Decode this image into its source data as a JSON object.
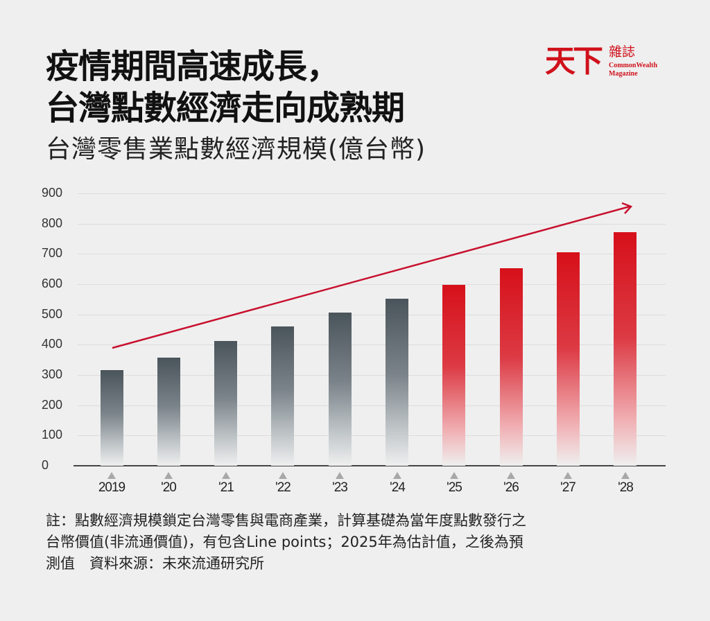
{
  "header": {
    "title_line1": "疫情期間高速成長，",
    "title_line2": "台灣點數經濟走向成熟期",
    "subtitle": "台灣零售業點數經濟規模(億台幣)"
  },
  "logo": {
    "main": "天下",
    "zh": "雜誌",
    "en_line1": "CommonWealth",
    "en_line2": "Magazine",
    "color": "#d0111b"
  },
  "chart_data": {
    "type": "bar",
    "title": "疫情期間高速成長，台灣點數經濟走向成熟期",
    "subtitle": "台灣零售業點數經濟規模(億台幣)",
    "xlabel": "",
    "ylabel": "億台幣",
    "categories": [
      "2019",
      "'20",
      "'21",
      "'22",
      "'23",
      "'24",
      "'25",
      "'26",
      "'27",
      "'28"
    ],
    "values": [
      316,
      357,
      412,
      460,
      506,
      552,
      598,
      653,
      705,
      772
    ],
    "series_type": [
      "actual",
      "actual",
      "actual",
      "actual",
      "actual",
      "actual",
      "forecast",
      "forecast",
      "forecast",
      "forecast"
    ],
    "yticks": [
      0,
      100,
      200,
      300,
      400,
      500,
      600,
      700,
      800,
      900
    ],
    "ylim": [
      0,
      900
    ],
    "grid": true,
    "colors": {
      "actual": "#4a545b",
      "forecast": "#d6101a",
      "trend_arrow": "#c8102e"
    },
    "annotations": [
      "Upward red trend arrow from 2019 (~390) to 2028 (~855)",
      "2025 is estimated; 2026–2028 are projections"
    ]
  },
  "footnote": {
    "line1": "註：點數經濟規模鎖定台灣零售與電商產業，計算基礎為當年度點數發行之",
    "line2": "台幣價值(非流通價值)，有包含Line points；2025年為估計值，之後為預",
    "line3": "測值　資料來源：未來流通研究所"
  }
}
